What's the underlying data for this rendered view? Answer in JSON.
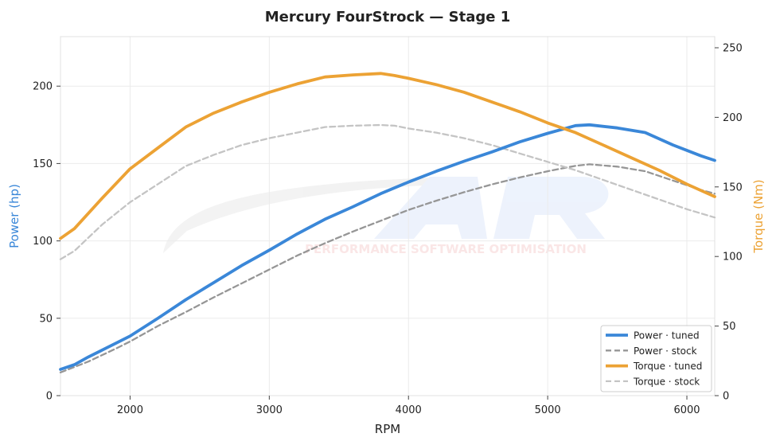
{
  "chart_data": {
    "type": "line",
    "title": "Mercury FourStrock — Stage 1",
    "xlabel": "RPM",
    "ylabel_left": "Power (hp)",
    "ylabel_right": "Torque (Nm)",
    "xlim": [
      1500,
      6200
    ],
    "ylim_left": [
      0,
      232
    ],
    "ylim_right": [
      0,
      258
    ],
    "x_ticks": [
      "2000",
      "3000",
      "4000",
      "5000",
      "6000"
    ],
    "y_ticks_left": [
      "0",
      "50",
      "100",
      "150",
      "200"
    ],
    "y_ticks_right": [
      "0",
      "50",
      "100",
      "150",
      "200",
      "250"
    ],
    "x_tick_values": [
      2000,
      3000,
      4000,
      5000,
      6000
    ],
    "y_tick_values_left": [
      0,
      50,
      100,
      150,
      200
    ],
    "y_tick_values_right": [
      0,
      50,
      100,
      150,
      200,
      250
    ],
    "grid": true,
    "legend_position": "bottom-right",
    "watermark": "PERFORMANCE SOFTWARE OPTIMISATION",
    "colors": {
      "power_tuned": "#3a87d8",
      "power_stock": "#969696",
      "torque_tuned": "#eca234",
      "torque_stock": "#c4c4c4",
      "left_axis": "#3a87d8",
      "right_axis": "#eca234"
    },
    "series": [
      {
        "name": "Power · tuned",
        "axis": "left",
        "style": "solid",
        "x": [
          1500,
          1600,
          1700,
          1800,
          1900,
          2000,
          2200,
          2400,
          2600,
          2800,
          3000,
          3200,
          3400,
          3600,
          3800,
          4000,
          4200,
          4400,
          4600,
          4800,
          5000,
          5200,
          5300,
          5500,
          5700,
          5900,
          6100,
          6200
        ],
        "y": [
          17,
          20,
          25,
          29.5,
          34,
          38.5,
          50,
          62,
          73,
          84,
          94,
          104.5,
          114,
          122,
          130.5,
          138,
          145,
          151.5,
          157.5,
          164,
          169.5,
          174.5,
          175,
          173,
          170,
          162,
          155,
          152
        ]
      },
      {
        "name": "Power · stock",
        "axis": "left",
        "style": "dashed",
        "x": [
          1500,
          1700,
          1900,
          2000,
          2200,
          2400,
          2600,
          2800,
          3000,
          3200,
          3400,
          3600,
          3800,
          4000,
          4200,
          4400,
          4600,
          4800,
          5000,
          5200,
          5300,
          5500,
          5700,
          5900,
          6100,
          6200
        ],
        "y": [
          15,
          22,
          30.5,
          35,
          45,
          54,
          63.5,
          72.5,
          81.5,
          90.5,
          98.5,
          106,
          113,
          120,
          126,
          131.5,
          136.5,
          141,
          145,
          148.5,
          149.5,
          148,
          145,
          139,
          133,
          130.5
        ]
      },
      {
        "name": "Torque · tuned",
        "axis": "right",
        "style": "solid",
        "x": [
          1500,
          1600,
          1800,
          2000,
          2200,
          2400,
          2600,
          2800,
          3000,
          3200,
          3400,
          3600,
          3800,
          3900,
          4000,
          4200,
          4400,
          4600,
          4800,
          5000,
          5200,
          5400,
          5600,
          5800,
          6000,
          6200
        ],
        "y": [
          113,
          120,
          142,
          163,
          178,
          193,
          203,
          211,
          218,
          224,
          229,
          230.5,
          231.5,
          230,
          228,
          223.5,
          218,
          211,
          204,
          196,
          189,
          180,
          171,
          162,
          152,
          143
        ]
      },
      {
        "name": "Torque · stock",
        "axis": "right",
        "style": "dashed",
        "x": [
          1500,
          1600,
          1800,
          2000,
          2200,
          2400,
          2600,
          2800,
          3000,
          3200,
          3400,
          3600,
          3800,
          3900,
          4000,
          4200,
          4400,
          4600,
          4800,
          5000,
          5200,
          5400,
          5600,
          5800,
          6000,
          6200
        ],
        "y": [
          98,
          104,
          123,
          139,
          152,
          165,
          173,
          180,
          185,
          189,
          193,
          194,
          194.5,
          194,
          192,
          189,
          185,
          180,
          174,
          168,
          162,
          155,
          148,
          141,
          134,
          128
        ]
      }
    ]
  }
}
